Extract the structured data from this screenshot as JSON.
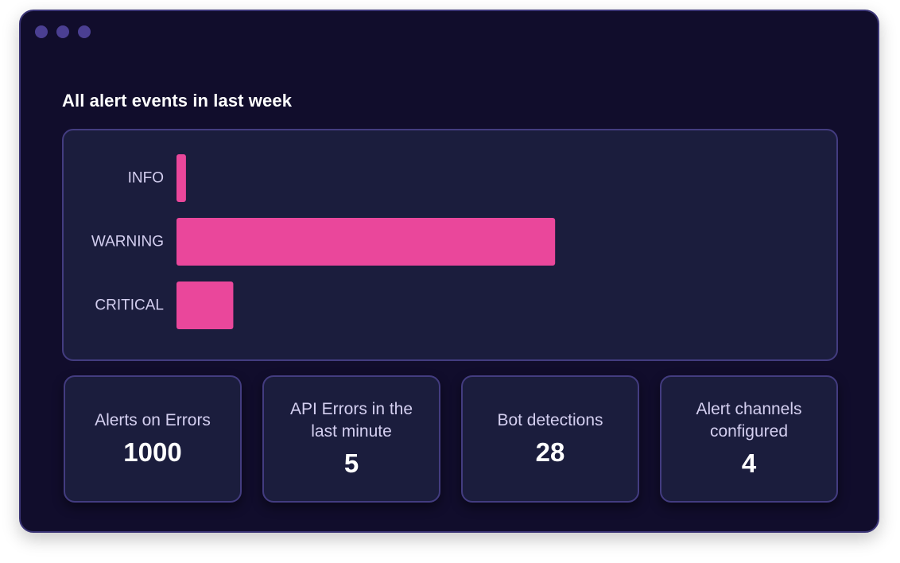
{
  "window": {
    "controls": [
      "window-dot",
      "window-dot",
      "window-dot"
    ],
    "accent_color": "#ea479b"
  },
  "chart_title": "All alert events in last week",
  "chart_data": {
    "type": "bar",
    "orientation": "horizontal",
    "title": "All alert events in last week",
    "categories": [
      "INFO",
      "WARNING",
      "CRITICAL"
    ],
    "values": [
      2.5,
      100,
      15
    ],
    "xlim": [
      0,
      168
    ],
    "grid": false,
    "legend": "none",
    "bar_color": "#ea479b"
  },
  "stats": [
    {
      "label": "Alerts on Errors",
      "value": "1000"
    },
    {
      "label": "API Errors in the last minute",
      "value": "5"
    },
    {
      "label": "Bot detections",
      "value": "28"
    },
    {
      "label": "Alert channels configured",
      "value": "4"
    }
  ]
}
